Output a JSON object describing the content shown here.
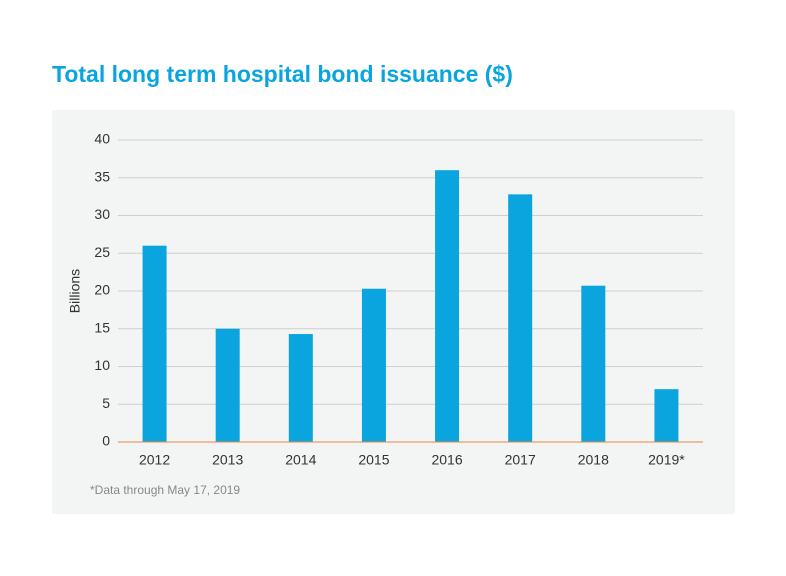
{
  "chart_data": {
    "type": "bar",
    "title": "Total long term hospital bond issuance ($)",
    "y_label": "Billions",
    "footnote": "*Data through May 17, 2019",
    "categories": [
      "2012",
      "2013",
      "2014",
      "2015",
      "2016",
      "2017",
      "2018",
      "2019*"
    ],
    "values": [
      26,
      15,
      14.3,
      20.3,
      36,
      32.8,
      20.7,
      7
    ],
    "color": "#0aa5df",
    "ylim": [
      0,
      40
    ],
    "yticks": [
      0,
      5,
      10,
      15,
      20,
      25,
      30,
      35,
      40
    ],
    "grid": true,
    "baseline_color": "#e8893f"
  }
}
